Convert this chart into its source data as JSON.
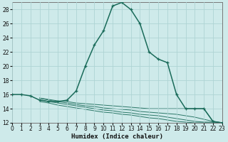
{
  "xlabel": "Humidex (Indice chaleur)",
  "bg_color": "#ceeaea",
  "grid_color": "#aed4d4",
  "line_color": "#1a6b5a",
  "x_main": [
    0,
    1,
    2,
    3,
    4,
    5,
    6,
    7,
    8,
    9,
    10,
    11,
    12,
    13,
    14,
    15,
    16,
    17,
    18,
    19,
    20,
    21,
    22,
    23
  ],
  "y_main": [
    16.0,
    16.0,
    15.8,
    15.2,
    15.0,
    15.0,
    15.2,
    16.5,
    20.0,
    23.0,
    25.0,
    28.5,
    29.0,
    28.0,
    26.0,
    22.0,
    21.0,
    20.5,
    16.0,
    14.0,
    14.0,
    14.0,
    12.2,
    12.0
  ],
  "flat_lines": [
    {
      "x": [
        3,
        4,
        5,
        6,
        7,
        8,
        9,
        10,
        11,
        12,
        13,
        14,
        15,
        16,
        17,
        18,
        19,
        20,
        21,
        22,
        23
      ],
      "y": [
        15.5,
        15.3,
        15.1,
        15.0,
        14.8,
        14.7,
        14.6,
        14.5,
        14.4,
        14.3,
        14.2,
        14.1,
        14.0,
        14.0,
        14.0,
        14.0,
        14.0,
        14.0,
        14.0,
        12.2,
        12.0
      ]
    },
    {
      "x": [
        3,
        4,
        5,
        6,
        7,
        8,
        9,
        10,
        11,
        12,
        13,
        14,
        15,
        16,
        17,
        18,
        19,
        20,
        21,
        22,
        23
      ],
      "y": [
        15.5,
        15.2,
        15.0,
        14.8,
        14.6,
        14.4,
        14.3,
        14.1,
        14.0,
        13.9,
        13.8,
        13.6,
        13.5,
        13.4,
        13.3,
        13.2,
        13.0,
        12.8,
        12.5,
        12.2,
        12.0
      ]
    },
    {
      "x": [
        3,
        4,
        5,
        6,
        7,
        8,
        9,
        10,
        11,
        12,
        13,
        14,
        15,
        16,
        17,
        18,
        19,
        20,
        21,
        22,
        23
      ],
      "y": [
        15.3,
        15.0,
        14.8,
        14.6,
        14.4,
        14.2,
        14.0,
        13.8,
        13.7,
        13.5,
        13.4,
        13.2,
        13.1,
        13.0,
        12.8,
        12.6,
        12.4,
        12.2,
        12.1,
        12.1,
        12.0
      ]
    },
    {
      "x": [
        3,
        4,
        5,
        6,
        7,
        8,
        9,
        10,
        11,
        12,
        13,
        14,
        15,
        16,
        17,
        18,
        19,
        20,
        21,
        22,
        23
      ],
      "y": [
        15.0,
        14.8,
        14.5,
        14.3,
        14.1,
        13.9,
        13.7,
        13.5,
        13.4,
        13.2,
        13.1,
        12.9,
        12.7,
        12.6,
        12.4,
        12.2,
        12.1,
        12.0,
        12.0,
        12.0,
        12.0
      ]
    }
  ],
  "ylim": [
    12,
    29
  ],
  "xlim": [
    0,
    23
  ],
  "yticks": [
    12,
    14,
    16,
    18,
    20,
    22,
    24,
    26,
    28
  ],
  "xticks": [
    0,
    1,
    2,
    3,
    4,
    5,
    6,
    7,
    8,
    9,
    10,
    11,
    12,
    13,
    14,
    15,
    16,
    17,
    18,
    19,
    20,
    21,
    22,
    23
  ],
  "figsize": [
    3.2,
    2.0
  ],
  "dpi": 100
}
